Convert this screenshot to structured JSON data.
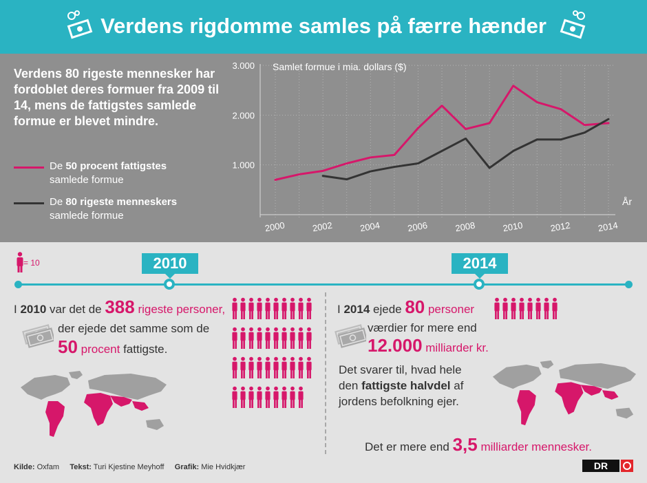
{
  "header": {
    "title": "Verdens rigdomme samles på færre hænder"
  },
  "intro": "Verdens 80 rigeste mennesker har fordoblet deres formuer fra 2009 til 14, mens de fattigstes samlede formue er blevet mindre.",
  "legend": [
    {
      "prefix": "De ",
      "bold": "50 procent fattigstes",
      "rest": "samlede formue",
      "color": "#d6176a"
    },
    {
      "prefix": "De ",
      "bold": "80 rigeste menneskers",
      "rest": "samlede formue",
      "color": "#333333"
    }
  ],
  "chart_data": {
    "type": "line",
    "ylabel": "Samlet formue i mia. dollars ($)",
    "xlabel": "År",
    "ylim": [
      0,
      3000
    ],
    "xlim": [
      2000,
      2014
    ],
    "yticks": [
      "1.000",
      "2.000",
      "3.000"
    ],
    "xticks": [
      "2000",
      "2002",
      "2004",
      "2006",
      "2008",
      "2010",
      "2012",
      "2014"
    ],
    "series": [
      {
        "name": "De 50 procent fattigstes samlede formue",
        "color": "#d6176a",
        "x": [
          2000,
          2001,
          2002,
          2003,
          2004,
          2005,
          2006,
          2007,
          2008,
          2009,
          2010,
          2011,
          2012,
          2013,
          2014
        ],
        "y": [
          700,
          810,
          880,
          1030,
          1150,
          1200,
          1740,
          2190,
          1720,
          1840,
          2590,
          2260,
          2120,
          1800,
          1840
        ]
      },
      {
        "name": "De 80 rigeste menneskers samlede formue",
        "color": "#333333",
        "x": [
          2002,
          2003,
          2004,
          2005,
          2006,
          2007,
          2008,
          2009,
          2010,
          2011,
          2012,
          2013,
          2014
        ],
        "y": [
          780,
          710,
          870,
          960,
          1030,
          1280,
          1530,
          940,
          1280,
          1510,
          1510,
          1650,
          1920
        ]
      }
    ]
  },
  "key": {
    "label": "= 10"
  },
  "years": {
    "left": "2010",
    "right": "2014"
  },
  "left": {
    "line1_a": "I ",
    "line1_year": "2010",
    "line1_b": " var det de ",
    "line1_num": "388",
    "line1_c": " rigeste personer,",
    "line2": "der ejede det samme som de",
    "line3_num": "50",
    "line3_a": " procent",
    "line3_b": " fattigste.",
    "people_count": 39
  },
  "right": {
    "line1_a": "I ",
    "line1_year": "2014",
    "line1_b": " ejede ",
    "line1_num": "80",
    "line1_c": " personer",
    "line2": "værdier for mere end",
    "line3_num": "12.000",
    "line3_a": " milliarder kr.",
    "para1": "Det svarer til, hvad hele",
    "para2_a": "den ",
    "para2_bold": "fattigste halvdel",
    "para2_b": " af",
    "para3": "jordens befolkning ejer.",
    "final_a": "Det er mere end ",
    "final_num": "3,5",
    "final_b": " milliarder mennesker.",
    "people_count": 8
  },
  "footer": {
    "source_label": "Kilde:",
    "source": "Oxfam",
    "text_label": "Tekst:",
    "text": "Turi Kjestine Meyhoff",
    "graphic_label": "Grafik:",
    "graphic": "Mie Hvidkjær"
  },
  "logo": "DR",
  "colors": {
    "accent": "#2ab3c2",
    "pink": "#d6176a",
    "dark": "#333333",
    "panel": "#8f8f8f"
  }
}
